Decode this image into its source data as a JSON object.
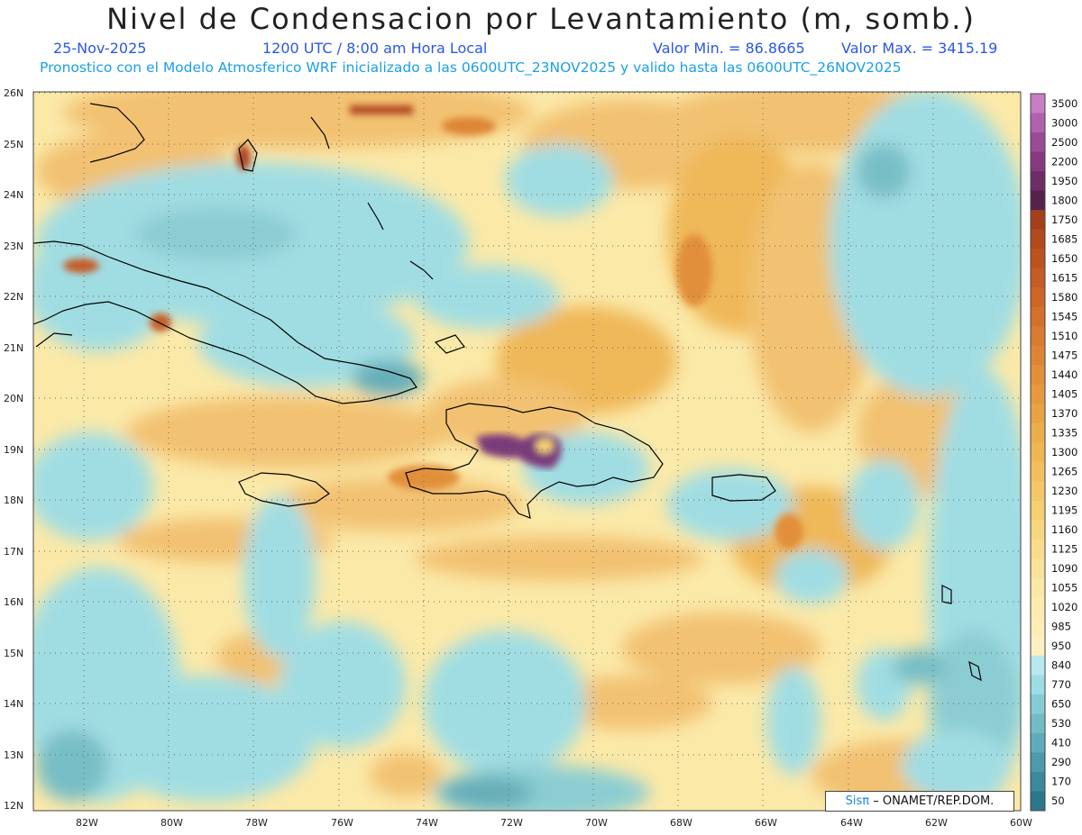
{
  "title": "Nivel de Condensacion por Levantamiento (m, somb.)",
  "header": {
    "date": "25-Nov-2025",
    "time": "1200 UTC / 8:00 am Hora Local",
    "min_label": "Valor Min. = 86.8665",
    "max_label": "Valor Max. = 3415.19",
    "forecast_note": "Pronostico con el Modelo Atmosferico WRF inicializado a las 0600UTC_23NOV2025 y valido hasta las  0600UTC_26NOV2025"
  },
  "map": {
    "lat_labels": [
      "26N",
      "25N",
      "24N",
      "23N",
      "22N",
      "21N",
      "20N",
      "19N",
      "18N",
      "17N",
      "16N",
      "15N",
      "14N",
      "13N",
      "12N"
    ],
    "lon_labels": [
      "82W",
      "80W",
      "78W",
      "76W",
      "74W",
      "72W",
      "70W",
      "68W",
      "66W",
      "64W",
      "62W",
      "60W"
    ],
    "colors": {
      "low": "#5aa6b5",
      "mid": "#9cdde6",
      "dry": "#fbe9a8",
      "warm": "#f2c070",
      "hot": "#e9a050",
      "extreme": "#7a3a7a"
    }
  },
  "colorbar": {
    "levels": [
      "3500",
      "3000",
      "2500",
      "2200",
      "1950",
      "1800",
      "1750",
      "1685",
      "1650",
      "1615",
      "1580",
      "1545",
      "1510",
      "1475",
      "1440",
      "1405",
      "1370",
      "1335",
      "1300",
      "1265",
      "1230",
      "1195",
      "1160",
      "1125",
      "1090",
      "1055",
      "1020",
      "985",
      "950",
      "840",
      "770",
      "650",
      "530",
      "410",
      "290",
      "170",
      "50"
    ],
    "colors": [
      "#c77ec2",
      "#b062ac",
      "#9a4a96",
      "#853a80",
      "#6e2d66",
      "#55224c",
      "#a43f1c",
      "#b24a1e",
      "#bb5321",
      "#c45c25",
      "#cc6528",
      "#d3702c",
      "#d87a30",
      "#dd8535",
      "#e28f3a",
      "#e6993f",
      "#e9a345",
      "#ecad4c",
      "#efb654",
      "#f2bf5e",
      "#f4c768",
      "#f6cf74",
      "#f8d680",
      "#f9dd8d",
      "#fae29a",
      "#fbe7a6",
      "#fceab0",
      "#fcedb9",
      "#fdf0c3",
      "#b9e8ef",
      "#9cdde6",
      "#86ccd5",
      "#72bcc8",
      "#5fabba",
      "#4d9aab",
      "#3c899d",
      "#2b788e"
    ]
  },
  "credit": {
    "brand": "Sisπ",
    "text": "– ONAMET/REP.DOM."
  }
}
